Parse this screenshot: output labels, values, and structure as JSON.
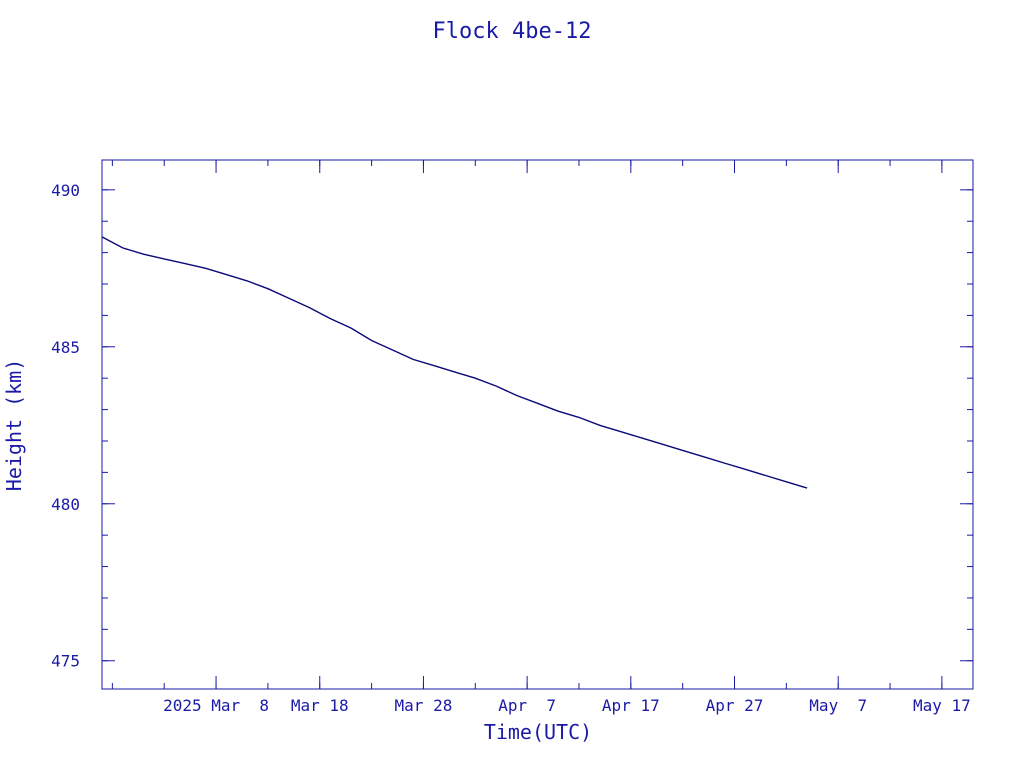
{
  "chart_data": {
    "type": "line",
    "title": "Flock 4be-12",
    "xlabel": "Time(UTC)",
    "ylabel": "Height (km)",
    "color": "#0a0a78",
    "axis_color": "#1a1aa6",
    "xlim": [
      "2025-02-25",
      "2025-05-20"
    ],
    "ylim": [
      474.1,
      490.95
    ],
    "x_ticks": [
      {
        "date": "2025-03-08",
        "label": "2025 Mar  8"
      },
      {
        "date": "2025-03-18",
        "label": "Mar 18"
      },
      {
        "date": "2025-03-28",
        "label": "Mar 28"
      },
      {
        "date": "2025-04-07",
        "label": "Apr  7"
      },
      {
        "date": "2025-04-17",
        "label": "Apr 17"
      },
      {
        "date": "2025-04-27",
        "label": "Apr 27"
      },
      {
        "date": "2025-05-07",
        "label": "May  7"
      },
      {
        "date": "2025-05-17",
        "label": "May 17"
      }
    ],
    "x_minor_step_days": 5,
    "y_ticks": [
      475,
      480,
      485,
      490
    ],
    "y_minor_step": 1,
    "series": [
      {
        "x": [
          "2025-02-25",
          "2025-02-27",
          "2025-03-01",
          "2025-03-03",
          "2025-03-05",
          "2025-03-07",
          "2025-03-09",
          "2025-03-11",
          "2025-03-13",
          "2025-03-15",
          "2025-03-17",
          "2025-03-19",
          "2025-03-21",
          "2025-03-23",
          "2025-03-25",
          "2025-03-27",
          "2025-03-29",
          "2025-03-31",
          "2025-04-02",
          "2025-04-04",
          "2025-04-06",
          "2025-04-08",
          "2025-04-10",
          "2025-04-12",
          "2025-04-14",
          "2025-04-16",
          "2025-04-18",
          "2025-04-20",
          "2025-04-22",
          "2025-04-24",
          "2025-04-26",
          "2025-04-28",
          "2025-04-30",
          "2025-05-02",
          "2025-05-04"
        ],
        "y": [
          488.5,
          488.15,
          487.95,
          487.8,
          487.65,
          487.5,
          487.3,
          487.1,
          486.85,
          486.55,
          486.25,
          485.9,
          485.6,
          485.2,
          484.9,
          484.6,
          484.4,
          484.2,
          484.0,
          483.75,
          483.45,
          483.2,
          482.95,
          482.75,
          482.5,
          482.3,
          482.1,
          481.9,
          481.7,
          481.5,
          481.3,
          481.1,
          480.9,
          480.7,
          480.5
        ]
      }
    ]
  }
}
